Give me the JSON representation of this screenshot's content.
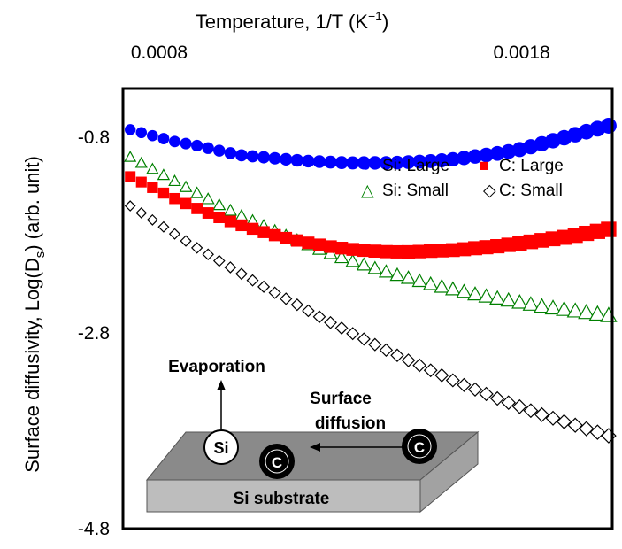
{
  "chart_data": {
    "type": "scatter",
    "title": "",
    "top_axis_label": "Temperature, 1/T (K",
    "top_axis_label_exp": "−1",
    "top_axis_label_close": ")",
    "ylabel": "Surface diffusivity, Log(D",
    "ylabel_sub": "s",
    "ylabel_close": ") (arb. unit)",
    "xlim": [
      0.0007,
      0.00205
    ],
    "ylim": [
      -4.8,
      -0.3
    ],
    "x_ticks": [
      {
        "value": 0.0008,
        "label": "0.0008"
      },
      {
        "value": 0.0018,
        "label": "0.0018"
      }
    ],
    "y_ticks": [
      {
        "value": -0.8,
        "label": "-0.8"
      },
      {
        "value": -2.8,
        "label": "-2.8"
      },
      {
        "value": -4.8,
        "label": "-4.8"
      }
    ],
    "series": [
      {
        "name": "Si: Large",
        "marker": "circle-filled",
        "color": "#0000ff",
        "x": [
          0.00072,
          0.00078,
          0.00084,
          0.0009,
          0.00096,
          0.00102,
          0.00108,
          0.00114,
          0.0012,
          0.00126,
          0.00132,
          0.00138,
          0.00144,
          0.0015,
          0.00156,
          0.00162,
          0.00168,
          0.00174,
          0.0018,
          0.00186,
          0.00192,
          0.00198,
          0.00204
        ],
        "values": [
          -0.72,
          -0.78,
          -0.84,
          -0.88,
          -0.93,
          -0.98,
          -1.0,
          -1.02,
          -1.04,
          -1.05,
          -1.06,
          -1.06,
          -1.06,
          -1.05,
          -1.04,
          -1.02,
          -0.99,
          -0.96,
          -0.92,
          -0.86,
          -0.8,
          -0.74,
          -0.68
        ]
      },
      {
        "name": "C: Large",
        "marker": "square-filled",
        "color": "#ff0000",
        "x": [
          0.00072,
          0.00078,
          0.00084,
          0.0009,
          0.00096,
          0.00102,
          0.00108,
          0.00114,
          0.0012,
          0.00126,
          0.00132,
          0.00138,
          0.00144,
          0.0015,
          0.00156,
          0.00162,
          0.00168,
          0.00174,
          0.0018,
          0.00186,
          0.00192,
          0.00198,
          0.00204
        ],
        "values": [
          -1.2,
          -1.31,
          -1.42,
          -1.52,
          -1.61,
          -1.69,
          -1.76,
          -1.82,
          -1.87,
          -1.91,
          -1.94,
          -1.96,
          -1.97,
          -1.97,
          -1.96,
          -1.95,
          -1.93,
          -1.91,
          -1.88,
          -1.85,
          -1.82,
          -1.78,
          -1.74
        ]
      },
      {
        "name": "Si: Small",
        "marker": "triangle-open",
        "color": "#008000",
        "x": [
          0.00072,
          0.00078,
          0.00084,
          0.0009,
          0.00096,
          0.00102,
          0.00108,
          0.00114,
          0.0012,
          0.00126,
          0.00132,
          0.00138,
          0.00144,
          0.0015,
          0.00156,
          0.00162,
          0.00168,
          0.00174,
          0.0018,
          0.00186,
          0.00192,
          0.00198,
          0.00204
        ],
        "values": [
          -1.0,
          -1.12,
          -1.24,
          -1.36,
          -1.48,
          -1.59,
          -1.69,
          -1.79,
          -1.88,
          -1.97,
          -2.05,
          -2.12,
          -2.19,
          -2.25,
          -2.31,
          -2.36,
          -2.41,
          -2.45,
          -2.49,
          -2.53,
          -2.56,
          -2.59,
          -2.62
        ]
      },
      {
        "name": "C: Small",
        "marker": "diamond-open",
        "color": "#000000",
        "x": [
          0.00072,
          0.00078,
          0.00084,
          0.0009,
          0.00096,
          0.00102,
          0.00108,
          0.00114,
          0.0012,
          0.00126,
          0.00132,
          0.00138,
          0.00144,
          0.0015,
          0.00156,
          0.00162,
          0.00168,
          0.00174,
          0.0018,
          0.00186,
          0.00192,
          0.00198,
          0.00204
        ],
        "values": [
          -1.5,
          -1.64,
          -1.78,
          -1.92,
          -2.05,
          -2.18,
          -2.31,
          -2.43,
          -2.55,
          -2.67,
          -2.78,
          -2.89,
          -3.0,
          -3.1,
          -3.2,
          -3.3,
          -3.39,
          -3.48,
          -3.56,
          -3.64,
          -3.71,
          -3.78,
          -3.85
        ]
      }
    ],
    "legend": {
      "placement": "top-right",
      "entries": [
        {
          "symbol": "●",
          "label": "Si: Large",
          "color": "#0000ff"
        },
        {
          "symbol": "■",
          "label": "C: Large",
          "color": "#ff0000"
        },
        {
          "symbol": "△",
          "label": "Si: Small",
          "color": "#008000"
        },
        {
          "symbol": "◇",
          "label": "C: Small",
          "color": "#000000"
        }
      ]
    },
    "annotations": {
      "evaporation": "Evaporation",
      "surface_line1": "Surface",
      "surface_line2": "diffusion",
      "substrate": "Si substrate",
      "atom_si": "Si",
      "atom_c": "C"
    }
  }
}
